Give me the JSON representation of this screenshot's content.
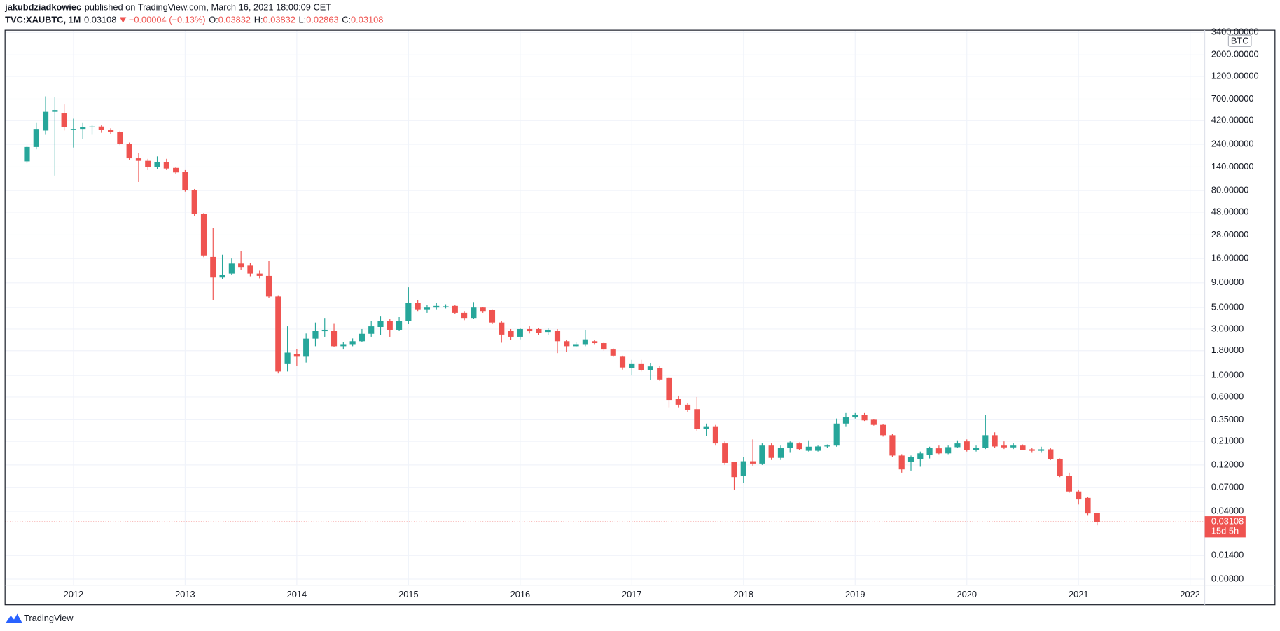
{
  "header": {
    "author": "jakubdziadkowiec",
    "published": "published on TradingView.com, March 16, 2021 18:00:09 CET",
    "symbol": "TVC:XAUBTC, 1M",
    "change": "−0.00004 (−0.13%)",
    "ohlc_labels": [
      "O:",
      "H:",
      "L:",
      "C:"
    ]
  },
  "footer": {
    "brand": "TradingView"
  },
  "chart_data": {
    "type": "candlestick",
    "unit": "BTC",
    "countdown": "15d 5h",
    "log_scale": true,
    "grid": true,
    "up_color": "#26a69a",
    "down_color": "#ef5350",
    "x": [
      "2011-08",
      "2011-09",
      "2011-10",
      "2011-11",
      "2011-12",
      "2012-01",
      "2012-02",
      "2012-03",
      "2012-04",
      "2012-05",
      "2012-06",
      "2012-07",
      "2012-08",
      "2012-09",
      "2012-10",
      "2012-11",
      "2012-12",
      "2013-01",
      "2013-02",
      "2013-03",
      "2013-04",
      "2013-05",
      "2013-06",
      "2013-07",
      "2013-08",
      "2013-09",
      "2013-10",
      "2013-11",
      "2013-12",
      "2014-01",
      "2014-02",
      "2014-03",
      "2014-04",
      "2014-05",
      "2014-06",
      "2014-07",
      "2014-08",
      "2014-09",
      "2014-10",
      "2014-11",
      "2014-12",
      "2015-01",
      "2015-02",
      "2015-03",
      "2015-04",
      "2015-05",
      "2015-06",
      "2015-07",
      "2015-08",
      "2015-09",
      "2015-10",
      "2015-11",
      "2015-12",
      "2016-01",
      "2016-02",
      "2016-03",
      "2016-04",
      "2016-05",
      "2016-06",
      "2016-07",
      "2016-08",
      "2016-09",
      "2016-10",
      "2016-11",
      "2016-12",
      "2017-01",
      "2017-02",
      "2017-03",
      "2017-04",
      "2017-05",
      "2017-06",
      "2017-07",
      "2017-08",
      "2017-09",
      "2017-10",
      "2017-11",
      "2017-12",
      "2018-01",
      "2018-02",
      "2018-03",
      "2018-04",
      "2018-05",
      "2018-06",
      "2018-07",
      "2018-08",
      "2018-09",
      "2018-10",
      "2018-11",
      "2018-12",
      "2019-01",
      "2019-02",
      "2019-03",
      "2019-04",
      "2019-05",
      "2019-06",
      "2019-07",
      "2019-08",
      "2019-09",
      "2019-10",
      "2019-11",
      "2019-12",
      "2020-01",
      "2020-02",
      "2020-03",
      "2020-04",
      "2020-05",
      "2020-06",
      "2020-07",
      "2020-08",
      "2020-09",
      "2020-10",
      "2020-11",
      "2020-12",
      "2021-01",
      "2021-02",
      "2021-03"
    ],
    "open": [
      160,
      225,
      332,
      518,
      498,
      340,
      345,
      360,
      365,
      340,
      320,
      243,
      172,
      162,
      139,
      157,
      137,
      125,
      81,
      46,
      16.6,
      10.2,
      11.2,
      14.2,
      13.5,
      11.2,
      10.6,
      6.5,
      1.31,
      1.66,
      1.56,
      2.39,
      2.85,
      2.9,
      2.0,
      2.1,
      2.25,
      2.68,
      3.15,
      3.6,
      2.95,
      3.65,
      5.6,
      4.8,
      5.0,
      5.1,
      5.2,
      4.4,
      3.9,
      5.0,
      4.7,
      3.5,
      2.9,
      2.5,
      3.0,
      3.0,
      2.8,
      2.9,
      2.25,
      2.0,
      2.1,
      2.25,
      2.15,
      1.85,
      1.56,
      1.19,
      1.31,
      1.14,
      1.19,
      0.94,
      0.57,
      0.5,
      0.45,
      0.28,
      0.3,
      0.2,
      0.128,
      0.092,
      0.131,
      0.124,
      0.19,
      0.142,
      0.18,
      0.2,
      0.168,
      0.168,
      0.186,
      0.19,
      0.32,
      0.37,
      0.39,
      0.35,
      0.31,
      0.243,
      0.15,
      0.128,
      0.139,
      0.153,
      0.178,
      0.158,
      0.183,
      0.21,
      0.17,
      0.18,
      0.243,
      0.19,
      0.182,
      0.19,
      0.174,
      0.168,
      0.174,
      0.139,
      0.093,
      0.064,
      0.055,
      0.03832
    ],
    "high": [
      233,
      403,
      748,
      740,
      617,
      440,
      403,
      380,
      375,
      350,
      330,
      250,
      195,
      170,
      180,
      170,
      140,
      130,
      83,
      47,
      33,
      17.5,
      16,
      19,
      14.5,
      12,
      15.2,
      6.7,
      3.2,
      1.86,
      2.7,
      3.5,
      3.9,
      3.45,
      2.2,
      2.4,
      3.0,
      3.6,
      4.1,
      3.8,
      4.0,
      8.1,
      6.0,
      5.3,
      5.6,
      5.4,
      5.3,
      4.6,
      5.7,
      5.1,
      4.8,
      3.6,
      3.0,
      3.1,
      3.2,
      3.1,
      3.1,
      3.0,
      2.3,
      2.2,
      2.95,
      2.3,
      2.2,
      1.9,
      1.6,
      1.45,
      1.45,
      1.35,
      1.25,
      0.96,
      0.62,
      0.52,
      0.6,
      0.32,
      0.31,
      0.21,
      0.13,
      0.145,
      0.22,
      0.2,
      0.2,
      0.19,
      0.21,
      0.205,
      0.215,
      0.19,
      0.195,
      0.36,
      0.41,
      0.41,
      0.41,
      0.355,
      0.315,
      0.25,
      0.155,
      0.15,
      0.165,
      0.185,
      0.19,
      0.19,
      0.215,
      0.22,
      0.19,
      0.395,
      0.26,
      0.21,
      0.2,
      0.195,
      0.18,
      0.185,
      0.178,
      0.14,
      0.1,
      0.067,
      0.056,
      0.03832
    ],
    "low": [
      153,
      213,
      300,
      114,
      332,
      222,
      273,
      300,
      315,
      305,
      235,
      165,
      98,
      130,
      133,
      130,
      118,
      78,
      44,
      16.5,
      6.0,
      9.8,
      10.8,
      12.3,
      10.5,
      10,
      6.3,
      1.05,
      1.1,
      1.26,
      1.36,
      2.0,
      2.5,
      1.95,
      1.85,
      2.0,
      2.2,
      2.5,
      2.6,
      2.5,
      2.9,
      3.4,
      4.6,
      4.4,
      4.8,
      4.9,
      4.3,
      3.7,
      3.8,
      4.4,
      3.4,
      2.17,
      2.3,
      2.35,
      2.7,
      2.6,
      2.6,
      1.7,
      1.75,
      1.95,
      2.0,
      2.1,
      1.8,
      1.55,
      1.15,
      1.0,
      1.1,
      0.9,
      0.88,
      0.47,
      0.47,
      0.42,
      0.27,
      0.24,
      0.19,
      0.12,
      0.067,
      0.078,
      0.118,
      0.12,
      0.135,
      0.135,
      0.16,
      0.17,
      0.165,
      0.165,
      0.18,
      0.185,
      0.3,
      0.36,
      0.34,
      0.305,
      0.235,
      0.145,
      0.1,
      0.105,
      0.115,
      0.14,
      0.155,
      0.155,
      0.18,
      0.165,
      0.165,
      0.175,
      0.18,
      0.175,
      0.175,
      0.17,
      0.16,
      0.16,
      0.135,
      0.09,
      0.062,
      0.047,
      0.036,
      0.02863
    ],
    "close": [
      225,
      345,
      518,
      540,
      359,
      345,
      360,
      365,
      340,
      320,
      243,
      172,
      162,
      139,
      157,
      135,
      123,
      81,
      46,
      17.2,
      10.2,
      10.8,
      14.2,
      13.1,
      11.2,
      10.6,
      6.5,
      1.1,
      1.72,
      1.56,
      2.39,
      2.9,
      2.95,
      2.0,
      2.1,
      2.25,
      2.68,
      3.2,
      3.6,
      2.95,
      3.65,
      5.6,
      4.8,
      5.0,
      5.2,
      5.15,
      4.4,
      3.9,
      5.0,
      4.6,
      3.5,
      2.63,
      2.5,
      3.0,
      2.85,
      2.75,
      2.95,
      2.25,
      2.0,
      2.1,
      2.35,
      2.15,
      1.85,
      1.6,
      1.21,
      1.31,
      1.14,
      1.24,
      0.91,
      0.56,
      0.5,
      0.44,
      0.28,
      0.3,
      0.2,
      0.126,
      0.09,
      0.131,
      0.124,
      0.19,
      0.142,
      0.18,
      0.205,
      0.175,
      0.185,
      0.186,
      0.19,
      0.32,
      0.37,
      0.395,
      0.345,
      0.31,
      0.243,
      0.15,
      0.108,
      0.144,
      0.158,
      0.179,
      0.158,
      0.183,
      0.2,
      0.17,
      0.18,
      0.243,
      0.186,
      0.182,
      0.19,
      0.172,
      0.168,
      0.174,
      0.139,
      0.093,
      0.064,
      0.053,
      0.038,
      0.03108
    ],
    "xlim": [
      2011.387,
      2022.131
    ],
    "xticks": [
      2012,
      2013,
      2014,
      2015,
      2016,
      2017,
      2018,
      2019,
      2020,
      2021,
      2022
    ],
    "ylim": [
      0.00692,
      3516
    ],
    "yticks": [
      {
        "value": 3400,
        "label": "3400.00000"
      },
      {
        "value": 2000,
        "label": "2000.00000"
      },
      {
        "value": 1200,
        "label": "1200.00000"
      },
      {
        "value": 700,
        "label": "700.00000"
      },
      {
        "value": 420,
        "label": "420.00000"
      },
      {
        "value": 240,
        "label": "240.00000"
      },
      {
        "value": 140,
        "label": "140.00000"
      },
      {
        "value": 80,
        "label": "80.00000"
      },
      {
        "value": 48,
        "label": "48.00000"
      },
      {
        "value": 28,
        "label": "28.00000"
      },
      {
        "value": 16,
        "label": "16.00000"
      },
      {
        "value": 9,
        "label": "9.00000"
      },
      {
        "value": 5,
        "label": "5.00000"
      },
      {
        "value": 3,
        "label": "3.00000"
      },
      {
        "value": 1.8,
        "label": "1.80000"
      },
      {
        "value": 1,
        "label": "1.00000"
      },
      {
        "value": 0.6,
        "label": "0.60000"
      },
      {
        "value": 0.35,
        "label": "0.35000"
      },
      {
        "value": 0.21,
        "label": "0.21000"
      },
      {
        "value": 0.12,
        "label": "0.12000"
      },
      {
        "value": 0.07,
        "label": "0.07000"
      },
      {
        "value": 0.04,
        "label": "0.04000"
      },
      {
        "value": 0.014,
        "label": "0.01400"
      },
      {
        "value": 0.008,
        "label": "0.00800"
      }
    ]
  }
}
